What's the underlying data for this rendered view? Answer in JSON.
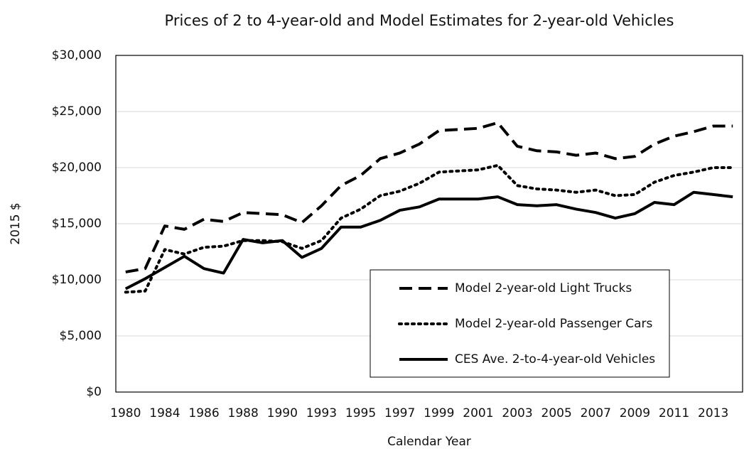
{
  "chart_data": {
    "type": "line",
    "title": "Prices of 2 to 4-year-old and Model Estimates for 2-year-old Vehicles",
    "x_label": "Calendar Year",
    "y_label": "2015 $",
    "categories": [
      "1980",
      null,
      "1984",
      null,
      "1986",
      null,
      "1988",
      null,
      "1990",
      null,
      "1993",
      null,
      "1995",
      null,
      "1997",
      null,
      "1999",
      null,
      "2001",
      null,
      "2003",
      null,
      "2005",
      null,
      "2007",
      null,
      "2009",
      null,
      "2011",
      null,
      "2013",
      null
    ],
    "ylim": [
      0,
      30000
    ],
    "yticks": [
      {
        "value": 0,
        "label": "$0"
      },
      {
        "value": 5000,
        "label": "$5,000"
      },
      {
        "value": 10000,
        "label": "$10,000"
      },
      {
        "value": 15000,
        "label": "$15,000"
      },
      {
        "value": 20000,
        "label": "$20,000"
      },
      {
        "value": 25000,
        "label": "$25,000"
      },
      {
        "value": 30000,
        "label": "$30,000"
      }
    ],
    "grid": true,
    "series": [
      {
        "name": "Model 2-year-old Light Trucks",
        "color": "#000000",
        "dash": "dashed",
        "values": [
          10700,
          11000,
          14800,
          14500,
          15400,
          15200,
          16000,
          15900,
          15800,
          15100,
          16600,
          18400,
          19300,
          20800,
          21300,
          22100,
          23300,
          23400,
          23500,
          24000,
          21900,
          21500,
          21400,
          21100,
          21300,
          20800,
          21000,
          22100,
          22800,
          23200,
          23700,
          23700
        ]
      },
      {
        "name": "Model 2-year-old Passenger Cars",
        "color": "#000000",
        "dash": "dotted",
        "values": [
          8900,
          9000,
          12700,
          12300,
          12900,
          13000,
          13500,
          13500,
          13400,
          12800,
          13500,
          15500,
          16300,
          17500,
          17900,
          18600,
          19600,
          19700,
          19800,
          20200,
          18400,
          18100,
          18000,
          17800,
          18000,
          17500,
          17600,
          18700,
          19300,
          19600,
          20000,
          20000
        ]
      },
      {
        "name": "CES Ave. 2-to-4-year-old Vehicles",
        "color": "#000000",
        "dash": "solid",
        "values": [
          9200,
          10100,
          11100,
          12100,
          11000,
          10600,
          13600,
          13300,
          13500,
          12000,
          12800,
          14700,
          14700,
          15300,
          16200,
          16500,
          17200,
          17200,
          17200,
          17400,
          16700,
          16600,
          16700,
          16300,
          16000,
          15500,
          15900,
          16900,
          16700,
          17800,
          17600,
          17400
        ]
      }
    ]
  }
}
